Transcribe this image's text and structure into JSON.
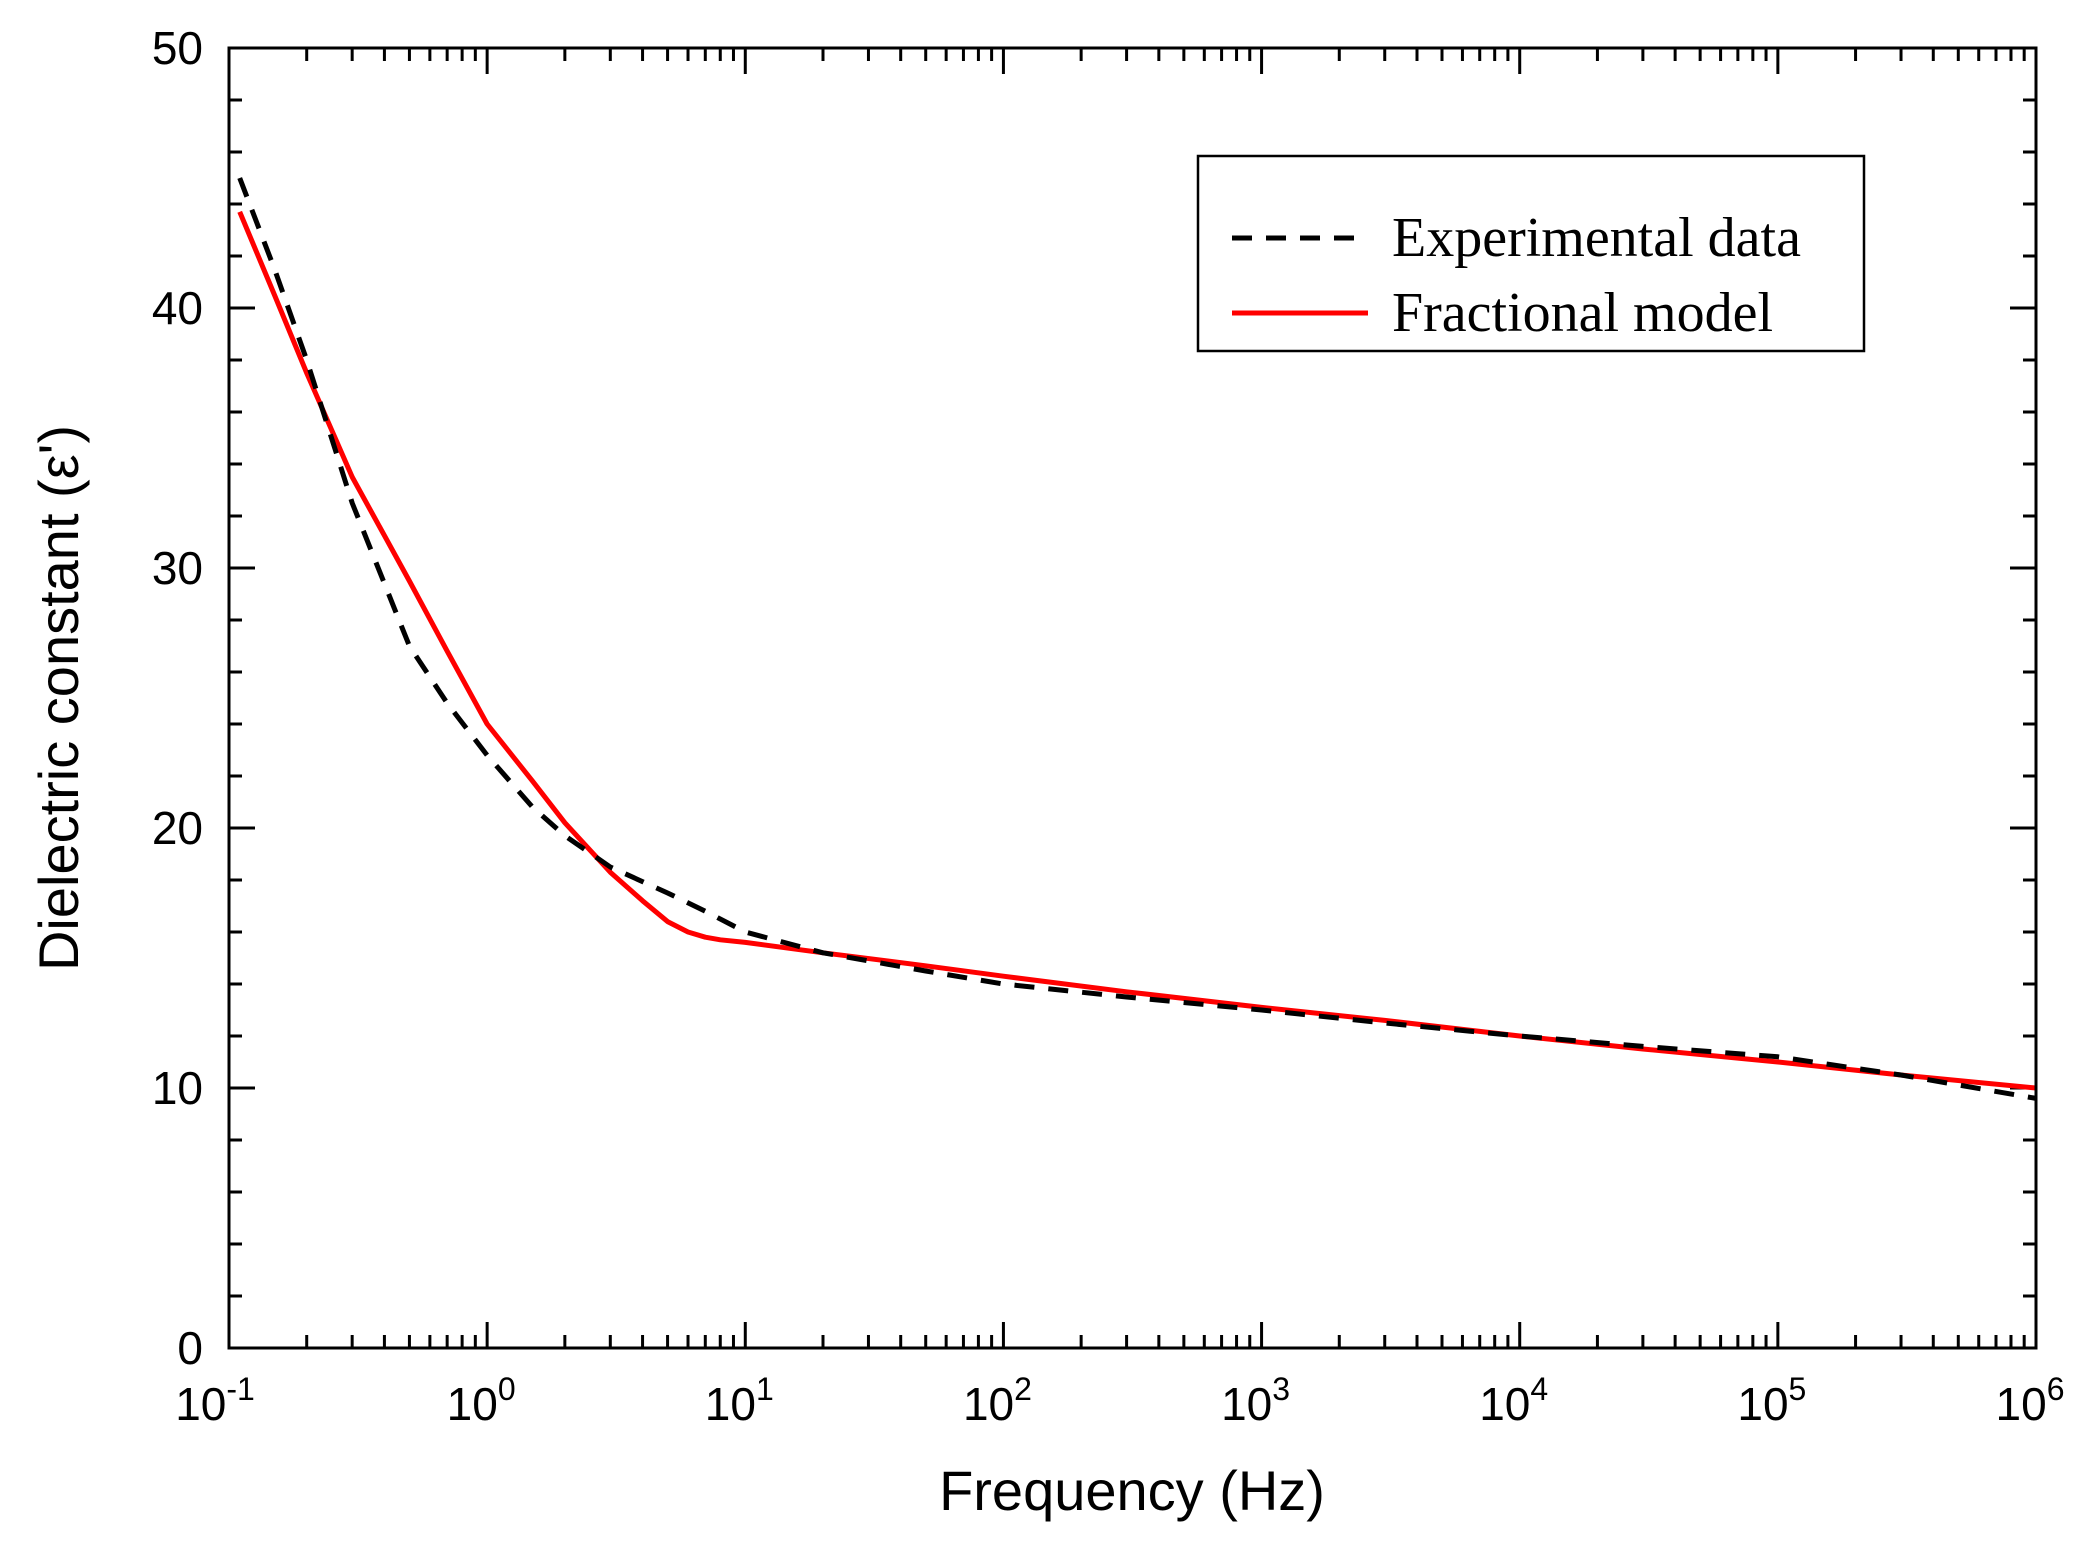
{
  "chart_data": {
    "type": "line",
    "title": "",
    "xlabel": "Frequency (Hz)",
    "ylabel": "Dielectric constant (ε')",
    "xscale": "log",
    "xlim": [
      0.1,
      1000000
    ],
    "ylim": [
      0,
      50
    ],
    "x_ticks": [
      {
        "base": "10",
        "exp": "-1",
        "value": 0.1
      },
      {
        "base": "10",
        "exp": "0",
        "value": 1
      },
      {
        "base": "10",
        "exp": "1",
        "value": 10
      },
      {
        "base": "10",
        "exp": "2",
        "value": 100
      },
      {
        "base": "10",
        "exp": "3",
        "value": 1000
      },
      {
        "base": "10",
        "exp": "4",
        "value": 10000
      },
      {
        "base": "10",
        "exp": "5",
        "value": 100000
      },
      {
        "base": "10",
        "exp": "6",
        "value": 1000000
      }
    ],
    "y_ticks": [
      0,
      10,
      20,
      30,
      40,
      50
    ],
    "legend_position": "top-right",
    "series": [
      {
        "name": "Experimental data",
        "color": "#000000",
        "style": "dashed",
        "x": [
          0.11,
          0.15,
          0.2,
          0.3,
          0.5,
          0.7,
          1,
          1.5,
          2,
          3,
          5,
          7,
          10,
          20,
          50,
          100,
          300,
          1000,
          3000,
          10000,
          30000,
          100000,
          300000,
          1000000
        ],
        "y": [
          45,
          41.5,
          38,
          32.5,
          27,
          24.8,
          22.8,
          20.8,
          19.7,
          18.5,
          17.5,
          16.8,
          16.0,
          15.2,
          14.5,
          14.0,
          13.5,
          13.0,
          12.5,
          12.0,
          11.6,
          11.2,
          10.5,
          9.6
        ]
      },
      {
        "name": "Fractional model",
        "color": "#ff0000",
        "style": "solid",
        "x": [
          0.11,
          0.15,
          0.2,
          0.3,
          0.5,
          0.7,
          1,
          1.5,
          2,
          3,
          4,
          5,
          6,
          7,
          8,
          10,
          20,
          50,
          100,
          300,
          1000,
          3000,
          10000,
          30000,
          100000,
          300000,
          1000000
        ],
        "y": [
          43.7,
          40.5,
          37.5,
          33.5,
          29.5,
          26.8,
          24.0,
          21.8,
          20.2,
          18.3,
          17.2,
          16.4,
          16.0,
          15.8,
          15.7,
          15.6,
          15.2,
          14.7,
          14.3,
          13.7,
          13.1,
          12.6,
          12.0,
          11.5,
          11.0,
          10.5,
          10.0
        ]
      }
    ]
  }
}
